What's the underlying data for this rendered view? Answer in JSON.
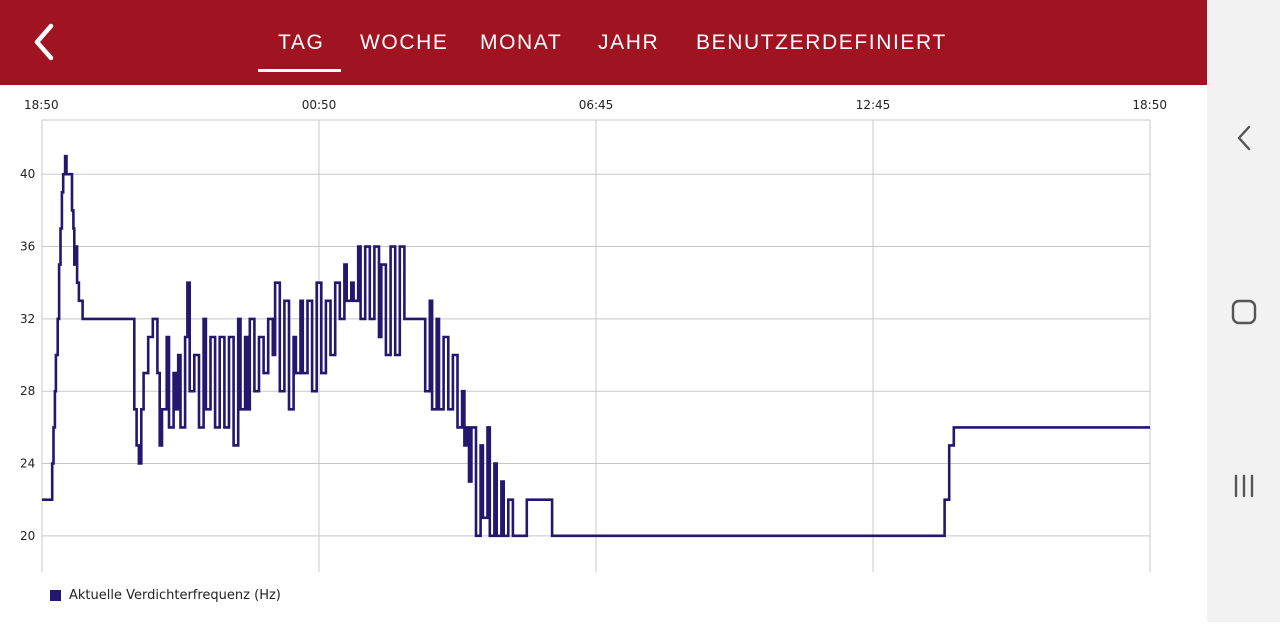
{
  "header": {
    "back_icon": "chevron-left-icon",
    "tabs": [
      {
        "label": "TAG",
        "active": true
      },
      {
        "label": "WOCHE",
        "active": false
      },
      {
        "label": "MONAT",
        "active": false
      },
      {
        "label": "JAHR",
        "active": false
      },
      {
        "label": "BENUTZERDEFINIERT",
        "active": false
      }
    ],
    "background_color": "#a01422"
  },
  "system_nav": {
    "items": [
      "back-icon",
      "home-icon",
      "recents-icon"
    ]
  },
  "chart_data": {
    "type": "line",
    "title": "",
    "xlabel": "",
    "ylabel": "",
    "x_tick_labels": [
      "18:50",
      "00:50",
      "06:45",
      "12:45",
      "18:50"
    ],
    "y_tick_labels": [
      "20",
      "24",
      "28",
      "32",
      "36",
      "40"
    ],
    "ylim": [
      18,
      43
    ],
    "xlim": [
      0,
      24
    ],
    "grid": true,
    "legend_position": "bottom-left",
    "series": [
      {
        "name": "Aktuelle Verdichterfrequenz (Hz)",
        "color": "#24176e",
        "points": [
          [
            0.0,
            22
          ],
          [
            0.2,
            22
          ],
          [
            0.22,
            24
          ],
          [
            0.25,
            26
          ],
          [
            0.28,
            28
          ],
          [
            0.3,
            30
          ],
          [
            0.34,
            32
          ],
          [
            0.37,
            35
          ],
          [
            0.4,
            37
          ],
          [
            0.43,
            39
          ],
          [
            0.46,
            40
          ],
          [
            0.5,
            41
          ],
          [
            0.53,
            40
          ],
          [
            0.62,
            40
          ],
          [
            0.65,
            38
          ],
          [
            0.68,
            37
          ],
          [
            0.7,
            35
          ],
          [
            0.73,
            36
          ],
          [
            0.76,
            34
          ],
          [
            0.8,
            33
          ],
          [
            0.88,
            32
          ],
          [
            1.95,
            32
          ],
          [
            2.0,
            27
          ],
          [
            2.05,
            25
          ],
          [
            2.1,
            24
          ],
          [
            2.15,
            27
          ],
          [
            2.2,
            29
          ],
          [
            2.3,
            31
          ],
          [
            2.4,
            32
          ],
          [
            2.5,
            29
          ],
          [
            2.55,
            25
          ],
          [
            2.6,
            27
          ],
          [
            2.7,
            31
          ],
          [
            2.75,
            26
          ],
          [
            2.85,
            29
          ],
          [
            2.9,
            27
          ],
          [
            2.95,
            30
          ],
          [
            3.0,
            26
          ],
          [
            3.1,
            31
          ],
          [
            3.15,
            34
          ],
          [
            3.2,
            28
          ],
          [
            3.3,
            30
          ],
          [
            3.4,
            26
          ],
          [
            3.5,
            32
          ],
          [
            3.55,
            27
          ],
          [
            3.65,
            31
          ],
          [
            3.75,
            26
          ],
          [
            3.85,
            31
          ],
          [
            3.95,
            26
          ],
          [
            4.05,
            31
          ],
          [
            4.15,
            25
          ],
          [
            4.25,
            32
          ],
          [
            4.3,
            27
          ],
          [
            4.4,
            31
          ],
          [
            4.45,
            27
          ],
          [
            4.5,
            32
          ],
          [
            4.6,
            28
          ],
          [
            4.7,
            31
          ],
          [
            4.8,
            29
          ],
          [
            4.9,
            32
          ],
          [
            5.0,
            30
          ],
          [
            5.05,
            34
          ],
          [
            5.15,
            28
          ],
          [
            5.25,
            33
          ],
          [
            5.35,
            27
          ],
          [
            5.45,
            31
          ],
          [
            5.5,
            29
          ],
          [
            5.6,
            33
          ],
          [
            5.65,
            29
          ],
          [
            5.75,
            33
          ],
          [
            5.85,
            28
          ],
          [
            5.95,
            34
          ],
          [
            6.05,
            29
          ],
          [
            6.15,
            33
          ],
          [
            6.25,
            30
          ],
          [
            6.35,
            34
          ],
          [
            6.45,
            32
          ],
          [
            6.55,
            35
          ],
          [
            6.6,
            33
          ],
          [
            6.7,
            34
          ],
          [
            6.75,
            33
          ],
          [
            6.85,
            36
          ],
          [
            6.9,
            32
          ],
          [
            7.0,
            36
          ],
          [
            7.1,
            32
          ],
          [
            7.2,
            36
          ],
          [
            7.3,
            31
          ],
          [
            7.35,
            35
          ],
          [
            7.45,
            30
          ],
          [
            7.55,
            36
          ],
          [
            7.65,
            30
          ],
          [
            7.75,
            36
          ],
          [
            7.85,
            32
          ],
          [
            7.95,
            32
          ],
          [
            8.15,
            32
          ],
          [
            8.25,
            32
          ],
          [
            8.3,
            28
          ],
          [
            8.4,
            33
          ],
          [
            8.45,
            27
          ],
          [
            8.55,
            32
          ],
          [
            8.6,
            27
          ],
          [
            8.7,
            31
          ],
          [
            8.8,
            27
          ],
          [
            8.9,
            30
          ],
          [
            9.0,
            26
          ],
          [
            9.1,
            28
          ],
          [
            9.15,
            25
          ],
          [
            9.2,
            26
          ],
          [
            9.25,
            23
          ],
          [
            9.3,
            26
          ],
          [
            9.4,
            20
          ],
          [
            9.5,
            25
          ],
          [
            9.55,
            21
          ],
          [
            9.65,
            26
          ],
          [
            9.7,
            20
          ],
          [
            9.8,
            24
          ],
          [
            9.85,
            20
          ],
          [
            9.95,
            23
          ],
          [
            10.0,
            20
          ],
          [
            10.1,
            22
          ],
          [
            10.2,
            20
          ],
          [
            10.45,
            20
          ],
          [
            10.5,
            22
          ],
          [
            11.0,
            22
          ],
          [
            11.05,
            20
          ],
          [
            13.5,
            20
          ],
          [
            19.5,
            20
          ],
          [
            19.55,
            22
          ],
          [
            19.65,
            25
          ],
          [
            19.75,
            26
          ],
          [
            24.0,
            26
          ]
        ]
      }
    ]
  }
}
